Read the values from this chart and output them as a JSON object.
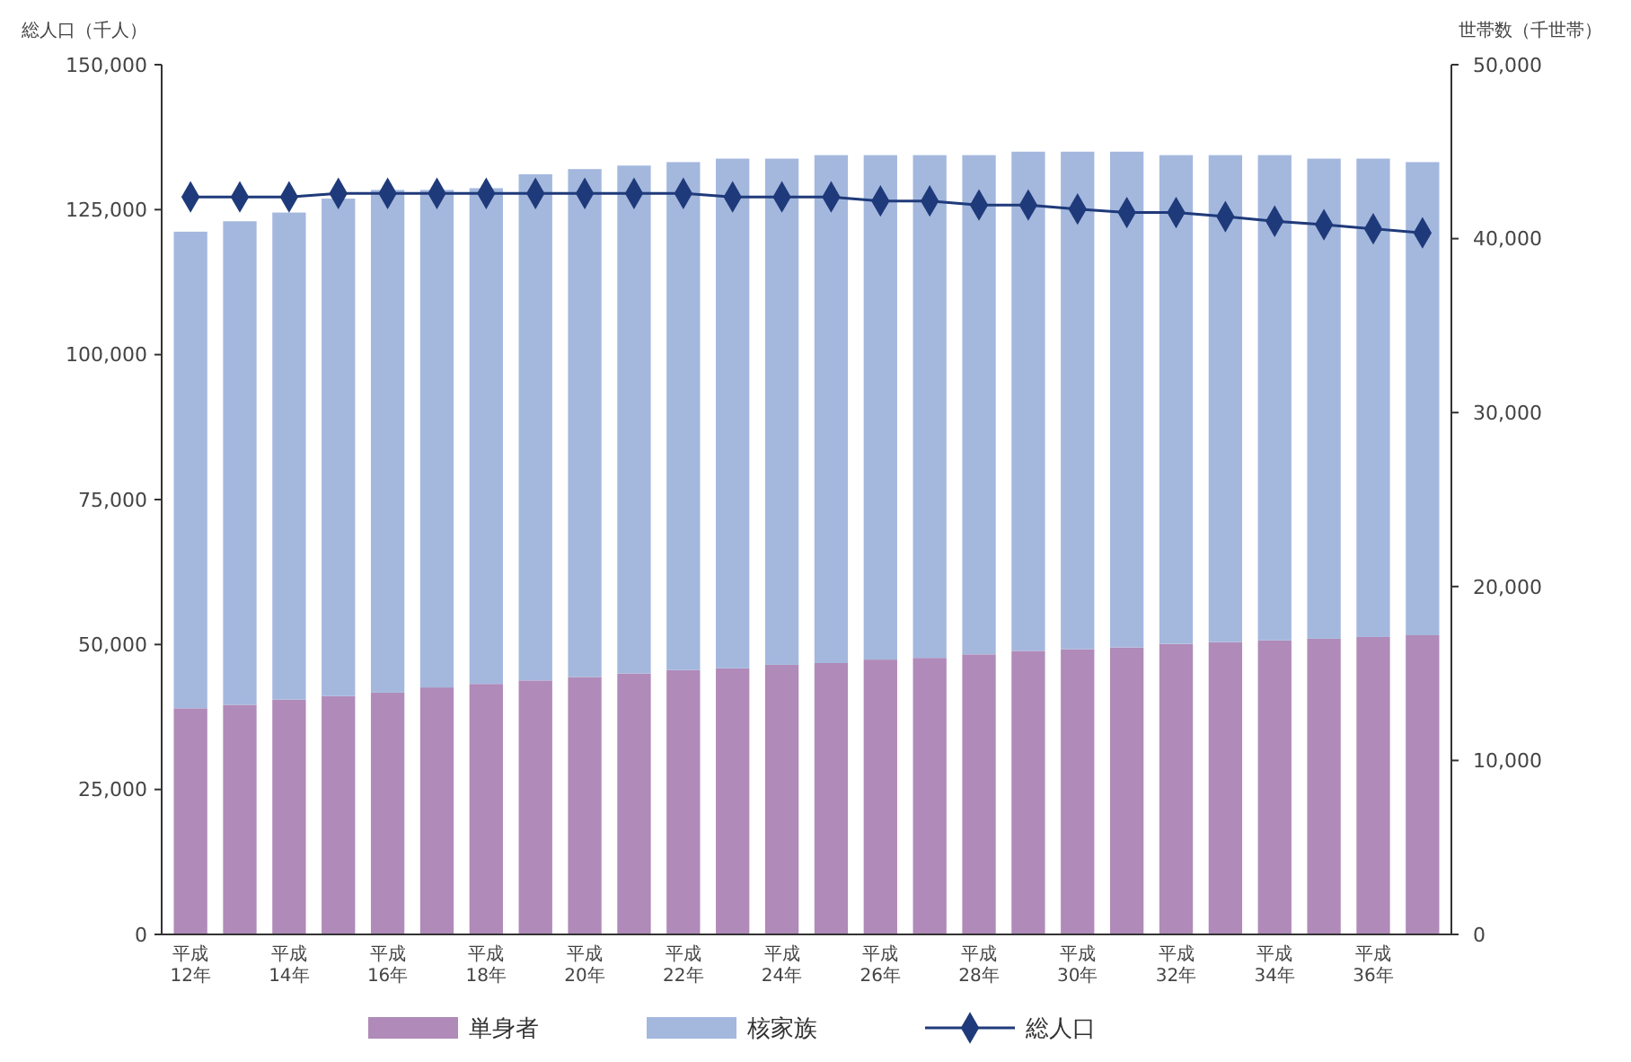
{
  "chart_data": {
    "type": "bar",
    "stacked": true,
    "ylabel": "総人口（千人）",
    "y2label": "世帯数（千世帯）",
    "categories": [
      "平成\n12年",
      null,
      "平成\n14年",
      null,
      "平成\n16年",
      null,
      "平成\n18年",
      null,
      "平成\n20年",
      null,
      "平成\n22年",
      null,
      "平成\n24年",
      null,
      "平成\n26年",
      null,
      "平成\n28年",
      null,
      "平成\n30年",
      null,
      "平成\n32年",
      null,
      "平成\n34年",
      null,
      "平成\n36年",
      null
    ],
    "series": [
      {
        "name": "単身者",
        "axis": "y2",
        "color": "#b08ab8",
        "values": [
          13000,
          13200,
          13500,
          13700,
          13900,
          14200,
          14400,
          14600,
          14800,
          15000,
          15200,
          15300,
          15500,
          15600,
          15800,
          15900,
          16100,
          16300,
          16400,
          16500,
          16700,
          16800,
          16900,
          17000,
          17100,
          17200
        ]
      },
      {
        "name": "核家族",
        "axis": "y2",
        "color": "#a4b8de",
        "values": [
          27400,
          27800,
          28000,
          28600,
          28900,
          28600,
          28500,
          29100,
          29200,
          29200,
          29200,
          29300,
          29100,
          29200,
          29000,
          28900,
          28700,
          28700,
          28600,
          28500,
          28100,
          28000,
          27900,
          27600,
          27500,
          27200
        ]
      },
      {
        "name": "総人口",
        "type": "line",
        "color": "#1f3a7a",
        "marker": "diamond",
        "line_style": "solid",
        "values": [
          127200,
          127200,
          127200,
          127800,
          127800,
          127800,
          127800,
          127800,
          127800,
          127800,
          127800,
          127200,
          127200,
          127200,
          126500,
          126500,
          125800,
          125800,
          125100,
          124500,
          124500,
          123800,
          123000,
          122400,
          121700,
          121000
        ]
      }
    ],
    "ylim": [
      0,
      150000
    ],
    "yticks": [
      {
        "value": 0,
        "label": "0"
      },
      {
        "value": 25000,
        "label": "25,000"
      },
      {
        "value": 50000,
        "label": "50,000"
      },
      {
        "value": 75000,
        "label": "75,000"
      },
      {
        "value": 100000,
        "label": "100,000"
      },
      {
        "value": 125000,
        "label": "125,000"
      },
      {
        "value": 150000,
        "label": "150,000"
      }
    ],
    "y2lim": [
      0,
      50000
    ],
    "y2ticks": [
      {
        "value": 0,
        "label": "0"
      },
      {
        "value": 10000,
        "label": "10,000"
      },
      {
        "value": 20000,
        "label": "20,000"
      },
      {
        "value": 30000,
        "label": "30,000"
      },
      {
        "value": 40000,
        "label": "40,000"
      },
      {
        "value": 50000,
        "label": "50,000"
      }
    ],
    "grid": false,
    "legend": "bottom"
  }
}
